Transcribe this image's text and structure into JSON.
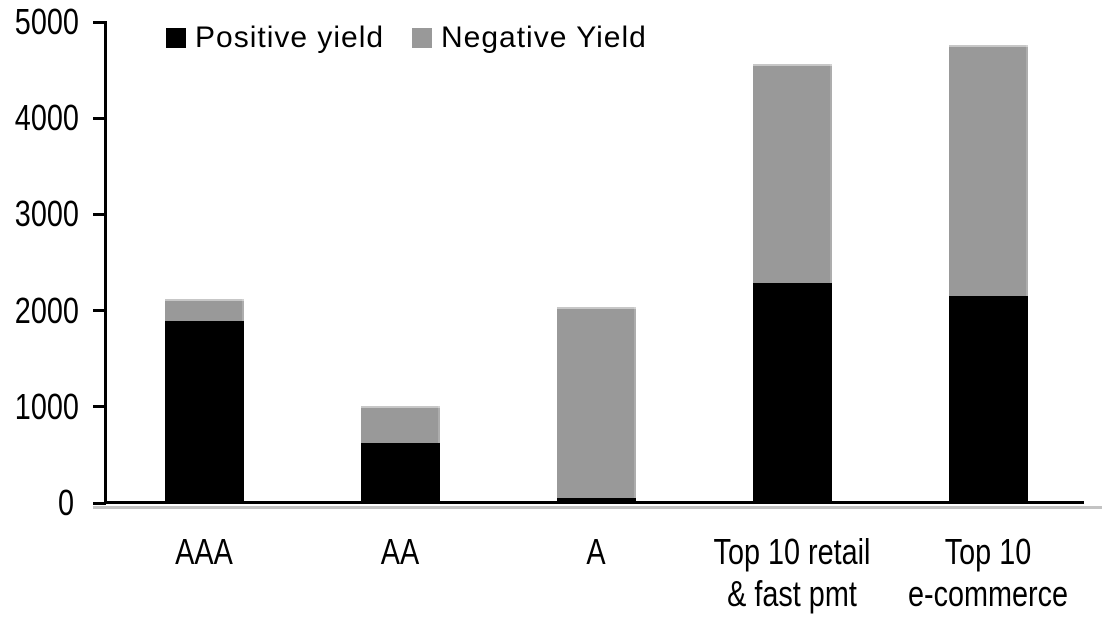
{
  "legend": {
    "items": [
      {
        "label": "Positive yield",
        "color": "#000000"
      },
      {
        "label": "Negative Yield",
        "color": "#999999"
      }
    ]
  },
  "chart_data": {
    "type": "bar",
    "stacked": true,
    "title": "",
    "xlabel": "",
    "ylabel": "",
    "categories": [
      "AAA",
      "AA",
      "A",
      "Top 10 retail\n& fast pmt",
      "Top 10\ne-commerce"
    ],
    "series": [
      {
        "name": "Positive yield",
        "color": "#000000",
        "values": [
          1890,
          620,
          50,
          2290,
          2150
        ]
      },
      {
        "name": "Negative Yield",
        "color": "#999999",
        "values": [
          230,
          385,
          1985,
          2270,
          2610
        ]
      }
    ],
    "ylim": [
      0,
      5000
    ],
    "yticks": [
      0,
      1000,
      2000,
      3000,
      4000,
      5000
    ],
    "grid": false,
    "background": "#ffffff",
    "legend_position": "top-left-inside"
  }
}
